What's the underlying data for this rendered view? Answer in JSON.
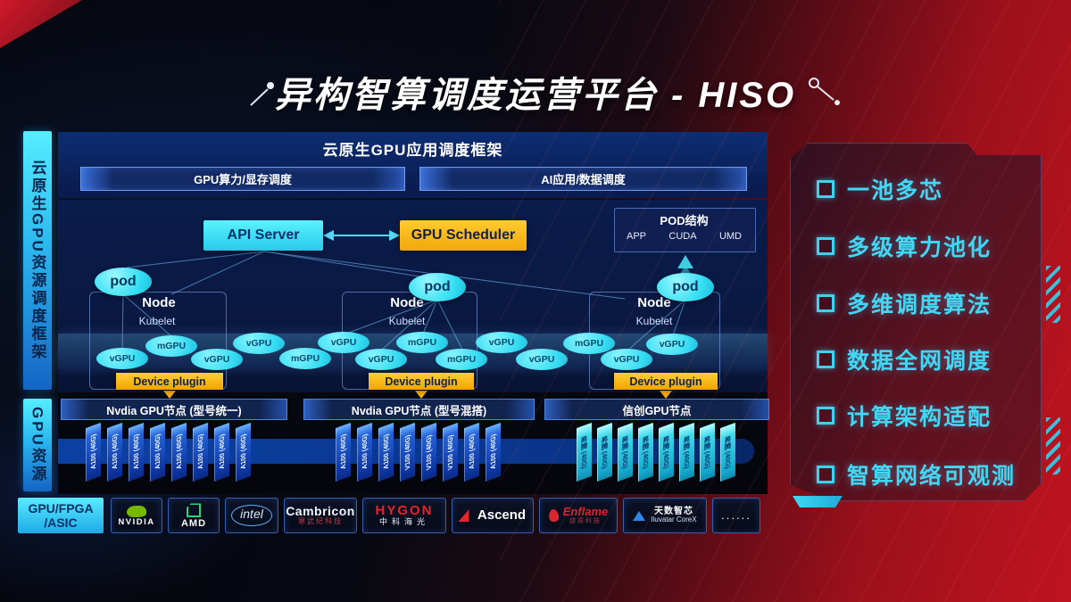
{
  "title": "异构智算调度运营平台 - HISO",
  "left_rails": {
    "top_label": "云原生GPU资源调度框架",
    "bottom_label": "GPU资源"
  },
  "framework": {
    "header": "云原生GPU应用调度框架",
    "bar_left": "GPU算力/显存调度",
    "bar_right": "AI应用/数据调度"
  },
  "control_plane": {
    "api_server_label": "API Server",
    "gpu_scheduler_label": "GPU Scheduler",
    "pod_struct": {
      "title": "POD结构",
      "items": [
        "APP",
        "CUDA",
        "UMD"
      ]
    }
  },
  "node_groups": {
    "node_label": "Node",
    "kubelet_label": "Kubelet",
    "pod_label": "pod",
    "device_plugin_label": "Device plugin"
  },
  "gpu_ellipses": [
    "vGPU",
    "mGPU",
    "vGPU",
    "vGPU",
    "mGPU",
    "vGPU",
    "vGPU",
    "mGPU",
    "mGPU",
    "vGPU",
    "vGPU",
    "mGPU",
    "vGPU",
    "vGPU"
  ],
  "gpu_node_bars": [
    {
      "label": "Nvdia GPU节点 (型号统一)",
      "cards": [
        "A100 (40G)",
        "A100 (40G)",
        "A100 (40G)",
        "A100 (40G)",
        "A100 (40G)",
        "A100 (40G)",
        "A100 (40G)",
        "A100 (40G)"
      ]
    },
    {
      "label": "Nvdia GPU节点 (型号混搭)",
      "cards": [
        "A100 (40G)",
        "A100 (40G)",
        "A100 (40G)",
        "V100 (40G)",
        "V100 (40G)",
        "V100 (40G)",
        "A100 (40G)",
        "A100 (40G)"
      ]
    },
    {
      "label": "信创GPU节点",
      "cards": [
        "昇腾 (40G)",
        "昇腾 (40G)",
        "昇腾 (40G)",
        "昇腾 (40G)",
        "昇腾 (40G)",
        "昇腾 (40G)",
        "昇腾 (40G)",
        "昇腾 (40G)"
      ]
    }
  ],
  "vendor_strip": {
    "category_line1": "GPU/FPGA",
    "category_line2": "/ASIC",
    "vendors": [
      {
        "name": "NVIDIA",
        "icon": "nvidia-logo-icon"
      },
      {
        "name": "AMD",
        "icon": "amd-logo-icon"
      },
      {
        "name": "intel"
      },
      {
        "name": "Cambricon",
        "sub": "寒武纪科技"
      },
      {
        "name": "HYGON",
        "sub": "中科海光"
      },
      {
        "name": "Ascend",
        "icon": "ascend-logo-icon"
      },
      {
        "name": "Enflame",
        "sub": "燧原科技",
        "icon": "enflame-logo-icon"
      },
      {
        "name": "天数智芯",
        "sub": "Iluvatar CoreX",
        "icon": "iluvatar-logo-icon"
      },
      {
        "name": "......"
      }
    ]
  },
  "features": [
    "一池多芯",
    "多级算力池化",
    "多维调度算法",
    "数据全网调度",
    "计算架构适配",
    "智算网络可观测"
  ],
  "colors": {
    "accent_cyan": "#3fd9f2",
    "accent_yellow": "#f3ae0a",
    "deep_blue_panel": "#0a1c4c",
    "card_blue": "#1d55c8",
    "bg_red": "#a9121d"
  }
}
